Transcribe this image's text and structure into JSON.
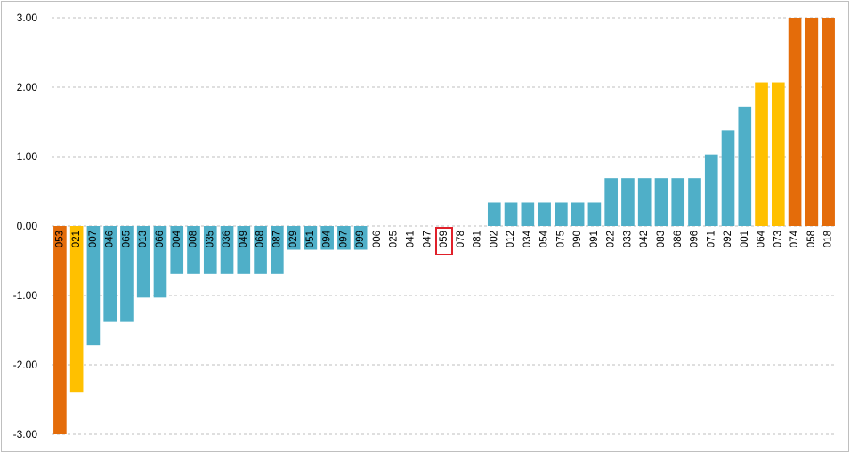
{
  "chart_data": {
    "type": "bar",
    "title": "",
    "xlabel": "",
    "ylabel": "",
    "ylim": [
      -3,
      3
    ],
    "yticks": [
      "3.00",
      "2.00",
      "1.00",
      "0.00",
      "-1.00",
      "-2.00",
      "-3.00"
    ],
    "grid": true,
    "categories": [
      "053",
      "021",
      "007",
      "046",
      "065",
      "013",
      "066",
      "004",
      "008",
      "035",
      "036",
      "049",
      "068",
      "087",
      "029",
      "051",
      "094",
      "097",
      "099",
      "006",
      "025",
      "041",
      "047",
      "059",
      "078",
      "081",
      "002",
      "012",
      "034",
      "054",
      "075",
      "090",
      "091",
      "022",
      "033",
      "042",
      "083",
      "086",
      "096",
      "071",
      "092",
      "001",
      "064",
      "073",
      "074",
      "058",
      "018"
    ],
    "values": [
      -3.0,
      -2.4,
      -1.72,
      -1.38,
      -1.38,
      -1.03,
      -1.03,
      -0.69,
      -0.69,
      -0.69,
      -0.69,
      -0.69,
      -0.69,
      -0.69,
      -0.34,
      -0.34,
      -0.34,
      -0.34,
      -0.34,
      0,
      0,
      0,
      0,
      0,
      0,
      0,
      0.34,
      0.34,
      0.34,
      0.34,
      0.34,
      0.34,
      0.34,
      0.69,
      0.69,
      0.69,
      0.69,
      0.69,
      0.69,
      1.03,
      1.38,
      1.72,
      2.07,
      2.07,
      3.0,
      3.0,
      3.0
    ],
    "bar_groups": [
      "extreme",
      "high",
      "normal",
      "normal",
      "normal",
      "normal",
      "normal",
      "normal",
      "normal",
      "normal",
      "normal",
      "normal",
      "normal",
      "normal",
      "normal",
      "normal",
      "normal",
      "normal",
      "normal",
      "normal",
      "normal",
      "normal",
      "normal",
      "normal",
      "normal",
      "normal",
      "normal",
      "normal",
      "normal",
      "normal",
      "normal",
      "normal",
      "normal",
      "normal",
      "normal",
      "normal",
      "normal",
      "normal",
      "normal",
      "normal",
      "normal",
      "normal",
      "high",
      "high",
      "extreme",
      "extreme",
      "extreme"
    ],
    "highlighted_category": "059",
    "colors": {
      "normal": "#4FAFC8",
      "high": "#FFC000",
      "extreme": "#E46C0A",
      "highlight_box": "#E0202A",
      "grid": "#BFBFBF",
      "frame": "#BFBFBF"
    }
  }
}
